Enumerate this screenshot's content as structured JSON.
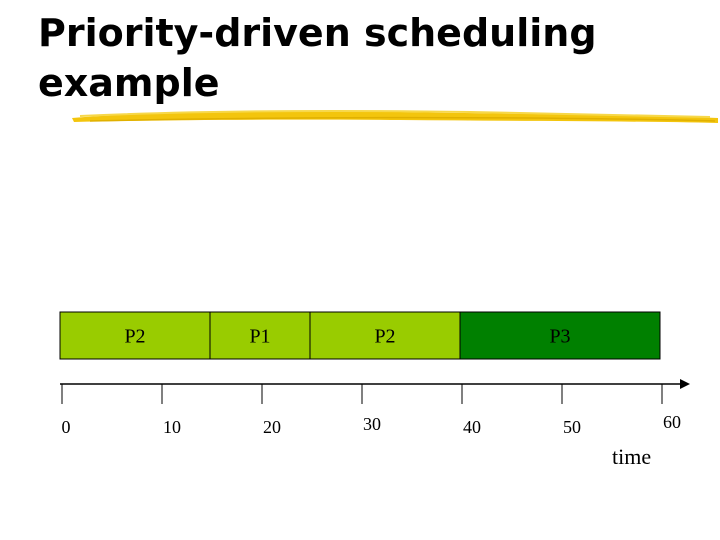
{
  "title": {
    "line1": "Priority-driven scheduling",
    "line2": "example"
  },
  "colors": {
    "brush": "#f2c200",
    "light_green": "#99cc00",
    "dark_green": "#008000",
    "border": "#000000"
  },
  "schedule": {
    "segments": [
      {
        "label": "P2",
        "start": 0,
        "end": 15,
        "color": "#99cc00"
      },
      {
        "label": "P1",
        "start": 15,
        "end": 25,
        "color": "#99cc00"
      },
      {
        "label": "P2",
        "start": 25,
        "end": 40,
        "color": "#99cc00"
      },
      {
        "label": "P3",
        "start": 40,
        "end": 60,
        "color": "#008000"
      }
    ],
    "ticks": [
      "0",
      "10",
      "20",
      "30",
      "40",
      "50",
      "60"
    ],
    "axis_label": "time"
  }
}
